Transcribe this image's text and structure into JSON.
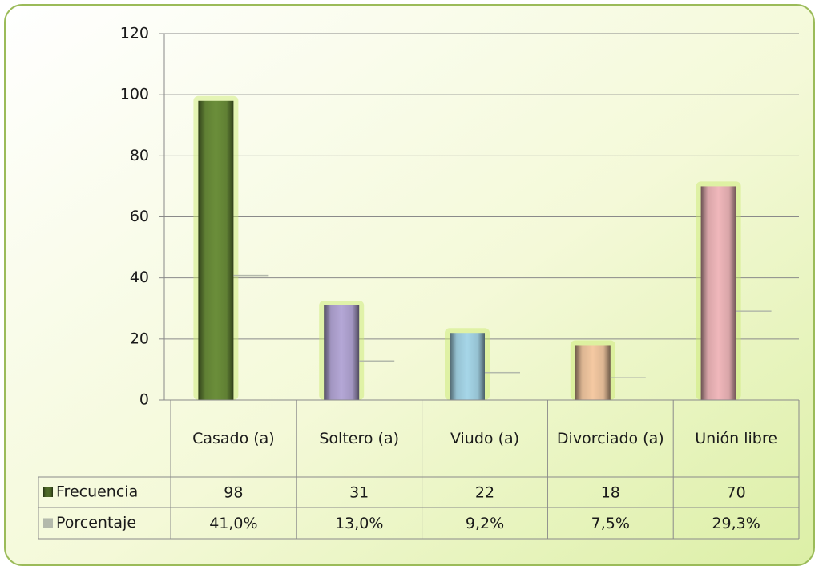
{
  "chart_data": {
    "type": "bar",
    "categories": [
      "Casado (a)",
      "Soltero (a)",
      "Viudo (a)",
      "Divorciado (a)",
      "Unión libre"
    ],
    "series": [
      {
        "name": "Frecuencia",
        "color": "#4f6b28",
        "colors": [
          "#6b8e3a",
          "#b4a7d6",
          "#a6d6e8",
          "#f4c9a2",
          "#f0b7bb"
        ],
        "values": [
          98,
          31,
          22,
          18,
          70
        ]
      },
      {
        "name": "Porcentaje",
        "color": "#b3b9ab",
        "values": [
          41.0,
          13.0,
          9.2,
          7.5,
          29.3
        ],
        "value_labels": [
          "41,0%",
          "13,0%",
          "9,2%",
          "7,5%",
          "29,3%"
        ]
      }
    ],
    "ylim": [
      0,
      120
    ],
    "yticks": [
      0,
      20,
      40,
      60,
      80,
      100,
      120
    ],
    "grid": true,
    "data_table": true
  }
}
